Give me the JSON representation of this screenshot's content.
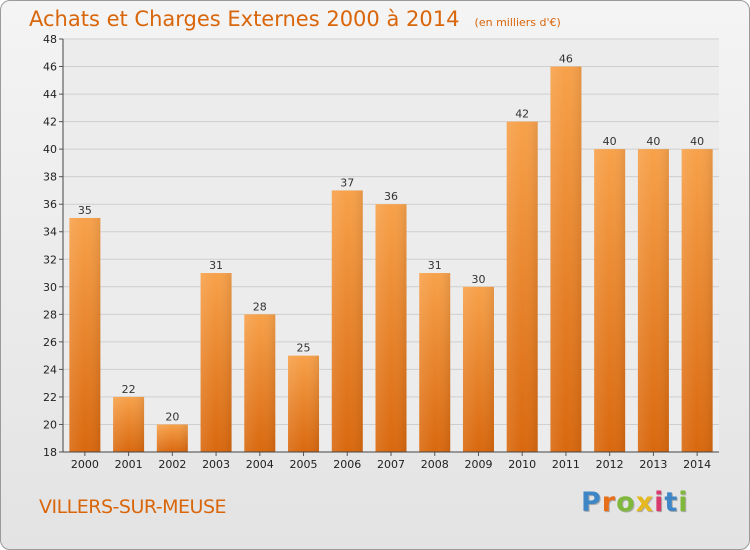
{
  "chart_data": {
    "type": "bar",
    "title": "Achats et Charges Externes 2000 à 2014",
    "subtitle": "(en milliers d'€)",
    "categories": [
      "2000",
      "2001",
      "2002",
      "2003",
      "2004",
      "2005",
      "2006",
      "2007",
      "2008",
      "2009",
      "2010",
      "2011",
      "2012",
      "2013",
      "2014"
    ],
    "values": [
      35,
      22,
      20,
      31,
      28,
      25,
      37,
      36,
      31,
      30,
      42,
      46,
      40,
      40,
      40
    ],
    "ylim": [
      18,
      48
    ],
    "yticks": [
      18,
      20,
      22,
      24,
      26,
      28,
      30,
      32,
      34,
      36,
      38,
      40,
      42,
      44,
      46,
      48
    ],
    "grid": true,
    "bar_color": "#f0932f"
  },
  "footer": {
    "commune": "VILLERS-SUR-MEUSE",
    "logo_letters": [
      "P",
      "r",
      "o",
      "x",
      "i",
      "t",
      "i"
    ],
    "logo_colors": [
      "#3f86c6",
      "#e86f1a",
      "#7fb83a",
      "#e6b820",
      "#d93a6e",
      "#3f86c6",
      "#7fb83a"
    ]
  }
}
